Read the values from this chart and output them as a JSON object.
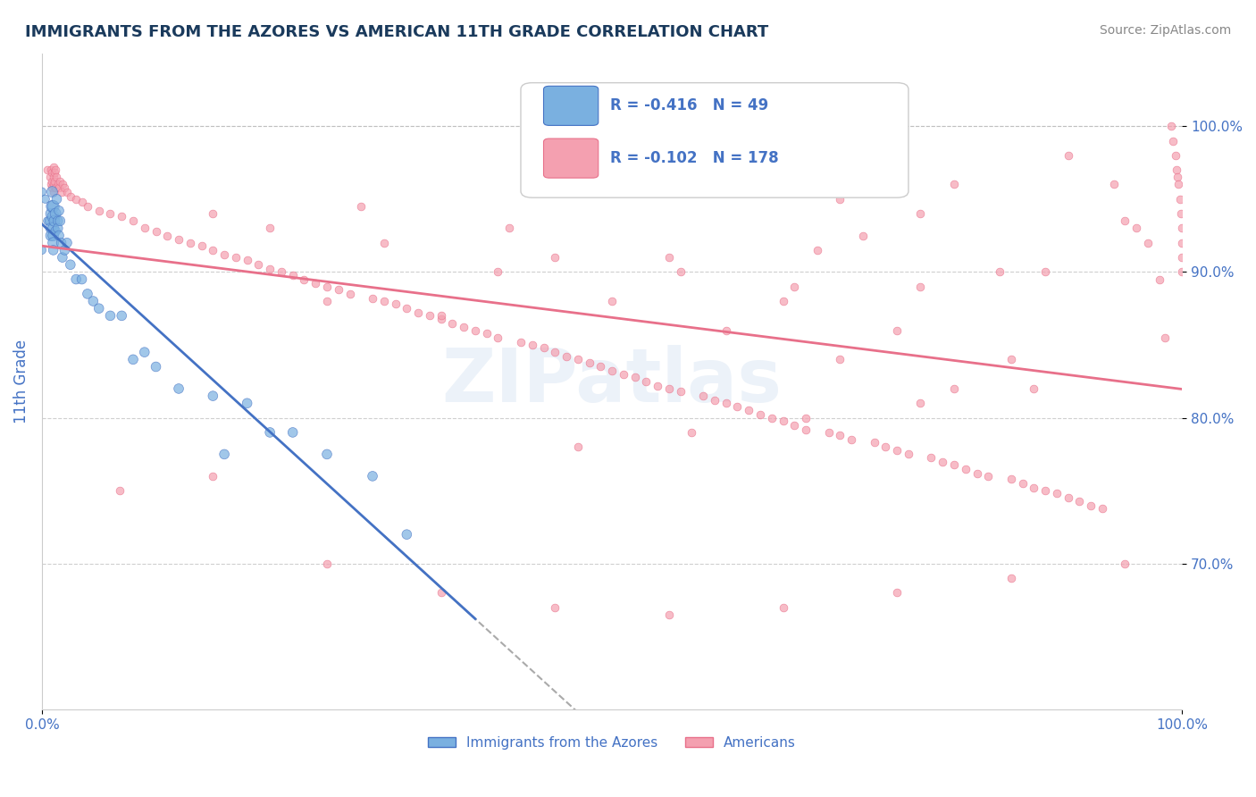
{
  "title": "IMMIGRANTS FROM THE AZORES VS AMERICAN 11TH GRADE CORRELATION CHART",
  "source_text": "Source: ZipAtlas.com",
  "ylabel": "11th Grade",
  "xlabel": "",
  "xlim": [
    0.0,
    1.0
  ],
  "ylim": [
    0.6,
    1.05
  ],
  "ytick_labels": [
    "70.0%",
    "80.0%",
    "90.0%",
    "100.0%"
  ],
  "ytick_values": [
    0.7,
    0.8,
    0.9,
    1.0
  ],
  "xtick_labels": [
    "0.0%",
    "100.0%"
  ],
  "xtick_values": [
    0.0,
    1.0
  ],
  "legend_R_blue": "-0.416",
  "legend_N_blue": "49",
  "legend_R_pink": "-0.102",
  "legend_N_pink": "178",
  "title_color": "#1a3a5c",
  "axis_label_color": "#4472c4",
  "blue_color": "#7ab0e0",
  "pink_color": "#f4a0b0",
  "trendline_blue": "#4472c4",
  "trendline_pink": "#e8708a",
  "watermark_text": "ZIPatlas",
  "blue_scatter": [
    [
      0.0,
      0.955
    ],
    [
      0.0,
      0.915
    ],
    [
      0.003,
      0.95
    ],
    [
      0.005,
      0.935
    ],
    [
      0.007,
      0.935
    ],
    [
      0.008,
      0.94
    ],
    [
      0.008,
      0.93
    ],
    [
      0.008,
      0.925
    ],
    [
      0.009,
      0.955
    ],
    [
      0.009,
      0.945
    ],
    [
      0.01,
      0.945
    ],
    [
      0.01,
      0.938
    ],
    [
      0.01,
      0.93
    ],
    [
      0.01,
      0.925
    ],
    [
      0.01,
      0.92
    ],
    [
      0.01,
      0.915
    ],
    [
      0.011,
      0.935
    ],
    [
      0.012,
      0.94
    ],
    [
      0.012,
      0.928
    ],
    [
      0.013,
      0.95
    ],
    [
      0.014,
      0.935
    ],
    [
      0.014,
      0.93
    ],
    [
      0.015,
      0.942
    ],
    [
      0.015,
      0.925
    ],
    [
      0.016,
      0.935
    ],
    [
      0.017,
      0.92
    ],
    [
      0.018,
      0.91
    ],
    [
      0.02,
      0.915
    ],
    [
      0.022,
      0.92
    ],
    [
      0.025,
      0.905
    ],
    [
      0.03,
      0.895
    ],
    [
      0.035,
      0.895
    ],
    [
      0.04,
      0.885
    ],
    [
      0.045,
      0.88
    ],
    [
      0.05,
      0.875
    ],
    [
      0.06,
      0.87
    ],
    [
      0.07,
      0.87
    ],
    [
      0.08,
      0.84
    ],
    [
      0.09,
      0.845
    ],
    [
      0.1,
      0.835
    ],
    [
      0.12,
      0.82
    ],
    [
      0.15,
      0.815
    ],
    [
      0.16,
      0.775
    ],
    [
      0.18,
      0.81
    ],
    [
      0.2,
      0.79
    ],
    [
      0.22,
      0.79
    ],
    [
      0.25,
      0.775
    ],
    [
      0.29,
      0.76
    ],
    [
      0.32,
      0.72
    ]
  ],
  "blue_sizes": [
    30,
    30,
    30,
    30,
    40,
    50,
    50,
    50,
    50,
    60,
    60,
    60,
    50,
    50,
    50,
    40,
    50,
    50,
    40,
    40,
    40,
    40,
    40,
    40,
    40,
    40,
    40,
    40,
    40,
    40,
    40,
    40,
    40,
    40,
    40,
    40,
    40,
    40,
    40,
    40,
    40,
    40,
    40,
    40,
    40,
    40,
    40,
    40,
    40
  ],
  "pink_scatter": [
    [
      0.005,
      0.97
    ],
    [
      0.007,
      0.965
    ],
    [
      0.008,
      0.97
    ],
    [
      0.008,
      0.96
    ],
    [
      0.009,
      0.968
    ],
    [
      0.009,
      0.962
    ],
    [
      0.009,
      0.958
    ],
    [
      0.01,
      0.972
    ],
    [
      0.01,
      0.965
    ],
    [
      0.01,
      0.96
    ],
    [
      0.01,
      0.955
    ],
    [
      0.011,
      0.968
    ],
    [
      0.011,
      0.962
    ],
    [
      0.012,
      0.97
    ],
    [
      0.012,
      0.958
    ],
    [
      0.013,
      0.965
    ],
    [
      0.014,
      0.96
    ],
    [
      0.015,
      0.958
    ],
    [
      0.016,
      0.962
    ],
    [
      0.017,
      0.955
    ],
    [
      0.018,
      0.96
    ],
    [
      0.02,
      0.958
    ],
    [
      0.022,
      0.955
    ],
    [
      0.025,
      0.952
    ],
    [
      0.03,
      0.95
    ],
    [
      0.035,
      0.948
    ],
    [
      0.04,
      0.945
    ],
    [
      0.05,
      0.942
    ],
    [
      0.06,
      0.94
    ],
    [
      0.07,
      0.938
    ],
    [
      0.08,
      0.935
    ],
    [
      0.09,
      0.93
    ],
    [
      0.1,
      0.928
    ],
    [
      0.11,
      0.925
    ],
    [
      0.12,
      0.922
    ],
    [
      0.13,
      0.92
    ],
    [
      0.14,
      0.918
    ],
    [
      0.15,
      0.915
    ],
    [
      0.16,
      0.912
    ],
    [
      0.17,
      0.91
    ],
    [
      0.18,
      0.908
    ],
    [
      0.19,
      0.905
    ],
    [
      0.2,
      0.902
    ],
    [
      0.21,
      0.9
    ],
    [
      0.22,
      0.898
    ],
    [
      0.23,
      0.895
    ],
    [
      0.24,
      0.892
    ],
    [
      0.25,
      0.89
    ],
    [
      0.26,
      0.888
    ],
    [
      0.27,
      0.885
    ],
    [
      0.28,
      0.945
    ],
    [
      0.29,
      0.882
    ],
    [
      0.3,
      0.88
    ],
    [
      0.31,
      0.878
    ],
    [
      0.32,
      0.875
    ],
    [
      0.33,
      0.872
    ],
    [
      0.34,
      0.87
    ],
    [
      0.35,
      0.868
    ],
    [
      0.36,
      0.865
    ],
    [
      0.37,
      0.862
    ],
    [
      0.38,
      0.86
    ],
    [
      0.39,
      0.858
    ],
    [
      0.4,
      0.855
    ],
    [
      0.41,
      0.93
    ],
    [
      0.42,
      0.852
    ],
    [
      0.43,
      0.85
    ],
    [
      0.44,
      0.848
    ],
    [
      0.45,
      0.845
    ],
    [
      0.46,
      0.842
    ],
    [
      0.47,
      0.84
    ],
    [
      0.48,
      0.838
    ],
    [
      0.49,
      0.835
    ],
    [
      0.5,
      0.832
    ],
    [
      0.51,
      0.83
    ],
    [
      0.52,
      0.828
    ],
    [
      0.53,
      0.825
    ],
    [
      0.54,
      0.822
    ],
    [
      0.55,
      0.82
    ],
    [
      0.56,
      0.818
    ],
    [
      0.57,
      0.955
    ],
    [
      0.58,
      0.815
    ],
    [
      0.59,
      0.812
    ],
    [
      0.6,
      0.81
    ],
    [
      0.61,
      0.808
    ],
    [
      0.62,
      0.805
    ],
    [
      0.63,
      0.802
    ],
    [
      0.64,
      0.8
    ],
    [
      0.65,
      0.798
    ],
    [
      0.66,
      0.795
    ],
    [
      0.67,
      0.792
    ],
    [
      0.68,
      0.915
    ],
    [
      0.69,
      0.79
    ],
    [
      0.7,
      0.788
    ],
    [
      0.71,
      0.785
    ],
    [
      0.72,
      0.925
    ],
    [
      0.73,
      0.783
    ],
    [
      0.74,
      0.78
    ],
    [
      0.75,
      0.778
    ],
    [
      0.76,
      0.775
    ],
    [
      0.77,
      0.94
    ],
    [
      0.78,
      0.773
    ],
    [
      0.79,
      0.77
    ],
    [
      0.8,
      0.768
    ],
    [
      0.81,
      0.765
    ],
    [
      0.82,
      0.762
    ],
    [
      0.83,
      0.76
    ],
    [
      0.84,
      0.9
    ],
    [
      0.85,
      0.758
    ],
    [
      0.86,
      0.755
    ],
    [
      0.87,
      0.752
    ],
    [
      0.88,
      0.75
    ],
    [
      0.89,
      0.748
    ],
    [
      0.9,
      0.745
    ],
    [
      0.91,
      0.743
    ],
    [
      0.92,
      0.74
    ],
    [
      0.93,
      0.738
    ],
    [
      0.94,
      0.96
    ],
    [
      0.95,
      0.935
    ],
    [
      0.96,
      0.93
    ],
    [
      0.97,
      0.92
    ],
    [
      0.98,
      0.895
    ],
    [
      0.985,
      0.855
    ],
    [
      0.99,
      1.0
    ],
    [
      0.992,
      0.99
    ],
    [
      0.994,
      0.98
    ],
    [
      0.995,
      0.97
    ],
    [
      0.996,
      0.965
    ],
    [
      0.997,
      0.96
    ],
    [
      0.998,
      0.95
    ],
    [
      0.999,
      0.94
    ],
    [
      1.0,
      0.93
    ],
    [
      1.0,
      0.92
    ],
    [
      1.0,
      0.91
    ],
    [
      1.0,
      0.9
    ],
    [
      0.068,
      0.75
    ],
    [
      0.15,
      0.76
    ],
    [
      0.25,
      0.7
    ],
    [
      0.35,
      0.68
    ],
    [
      0.45,
      0.67
    ],
    [
      0.55,
      0.665
    ],
    [
      0.65,
      0.67
    ],
    [
      0.75,
      0.68
    ],
    [
      0.85,
      0.69
    ],
    [
      0.95,
      0.7
    ],
    [
      0.55,
      0.91
    ],
    [
      0.65,
      0.88
    ],
    [
      0.75,
      0.86
    ],
    [
      0.85,
      0.84
    ],
    [
      0.5,
      0.88
    ],
    [
      0.6,
      0.86
    ],
    [
      0.7,
      0.84
    ],
    [
      0.8,
      0.82
    ],
    [
      0.25,
      0.88
    ],
    [
      0.35,
      0.87
    ],
    [
      0.4,
      0.9
    ],
    [
      0.15,
      0.94
    ],
    [
      0.2,
      0.93
    ],
    [
      0.3,
      0.92
    ],
    [
      0.45,
      0.91
    ],
    [
      0.56,
      0.9
    ],
    [
      0.66,
      0.89
    ],
    [
      0.77,
      0.89
    ],
    [
      0.88,
      0.9
    ],
    [
      0.7,
      0.95
    ],
    [
      0.8,
      0.96
    ],
    [
      0.9,
      0.98
    ],
    [
      0.87,
      0.82
    ],
    [
      0.77,
      0.81
    ],
    [
      0.67,
      0.8
    ],
    [
      0.57,
      0.79
    ],
    [
      0.47,
      0.78
    ]
  ],
  "pink_sizes": 40,
  "dashed_line_color": "#aaaaaa",
  "background_color": "#ffffff"
}
